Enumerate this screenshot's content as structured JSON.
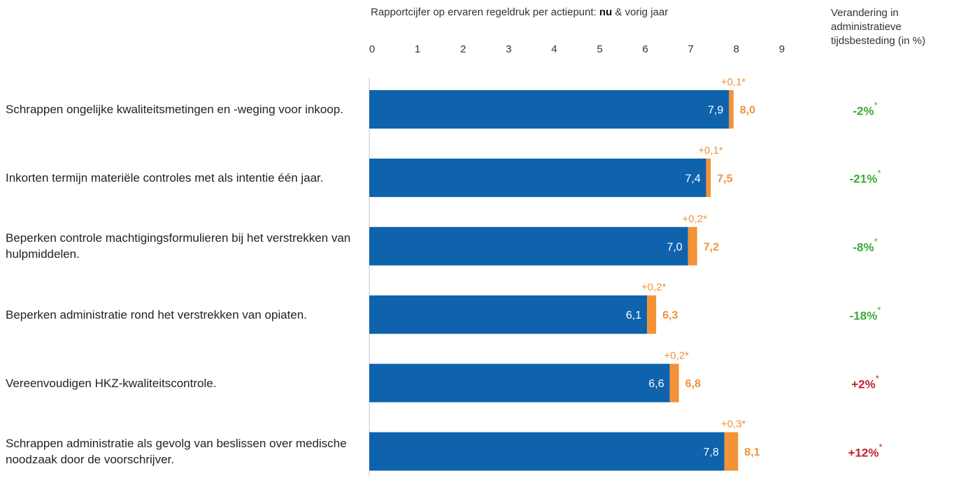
{
  "title_prefix": "Rapportcijfer op ervaren regeldruk per actiepunt: ",
  "title_bold": "nu",
  "title_suffix": " & vorig jaar",
  "right_header": [
    "Verandering in",
    "administratieve",
    "tijdsbesteding (in %)"
  ],
  "colors": {
    "previous": "#0f62ac",
    "increase": "#f39237",
    "positive_change": "#3aaa35",
    "negative_change": "#c0212f",
    "axis": "#c8c8c8"
  },
  "chart_data": {
    "type": "bar",
    "orientation": "horizontal",
    "xlim": [
      0,
      9
    ],
    "xticks": [
      "0",
      "1",
      "2",
      "3",
      "4",
      "5",
      "6",
      "7",
      "8",
      "9"
    ],
    "categories": [
      "Schrappen ongelijke kwaliteitsmetingen en -weging voor inkoop.",
      "Inkorten termijn materiële controles met als intentie één jaar.",
      "Beperken controle machtigingsformulieren bij het verstrekken van hulpmiddelen.",
      "Beperken administratie rond het verstrekken van opiaten.",
      "Vereenvoudigen HKZ-kwaliteitscontrole.",
      "Schrappen administratie als gevolg van beslissen over medische noodzaak door de voorschrijver."
    ],
    "previous_values": [
      7.9,
      7.4,
      7.0,
      6.1,
      6.6,
      7.8
    ],
    "current_values": [
      8.0,
      7.5,
      7.2,
      6.3,
      6.8,
      8.1
    ],
    "previous_labels": [
      "7,9",
      "7,4",
      "7,0",
      "6,1",
      "6,6",
      "7,8"
    ],
    "current_labels": [
      "8,0",
      "7,5",
      "7,2",
      "6,3",
      "6,8",
      "8,1"
    ],
    "difference_labels": [
      "+0,1*",
      "+0,1*",
      "+0,2*",
      "+0,2*",
      "+0,2*",
      "+0,3*"
    ],
    "time_change": [
      "-2%",
      "-21%",
      "-8%",
      "-18%",
      "+2%",
      "+12%"
    ],
    "time_change_marker": "*"
  }
}
